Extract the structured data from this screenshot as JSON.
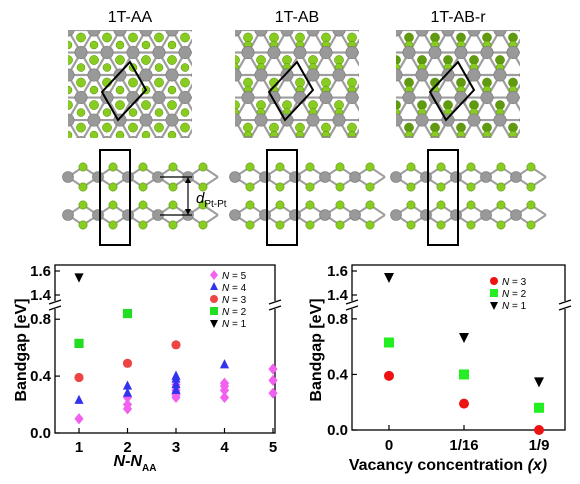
{
  "structures": {
    "titles": [
      "1T-AA",
      "1T-AB",
      "1T-AB-r"
    ],
    "distance_label": {
      "main": "d",
      "sub": "Pt-Pt"
    }
  },
  "chart_data": [
    {
      "type": "scatter",
      "xlabel": {
        "main": "N-N",
        "sub": "AA"
      },
      "ylabel": "Bandgap [eV]",
      "x_ticks": [
        "1",
        "2",
        "3",
        "4",
        "5"
      ],
      "y_ticks": [
        "0.0",
        "0.4",
        "0.8",
        "1.4",
        "1.6"
      ],
      "ylim": [
        0,
        1.65
      ],
      "axis_break": [
        0.9,
        1.35
      ],
      "legend_position": "top-right",
      "series": [
        {
          "name": "N = 5",
          "marker": "diamond",
          "color": "#f260f0",
          "points": [
            [
              1,
              0.1
            ],
            [
              2,
              0.17
            ],
            [
              2,
              0.2
            ],
            [
              2,
              0.25
            ],
            [
              3,
              0.25
            ],
            [
              3,
              0.27
            ],
            [
              3,
              0.3
            ],
            [
              3,
              0.34
            ],
            [
              4,
              0.25
            ],
            [
              4,
              0.3
            ],
            [
              4,
              0.33
            ],
            [
              4,
              0.35
            ],
            [
              5,
              0.28
            ],
            [
              5,
              0.37
            ],
            [
              5,
              0.45
            ]
          ]
        },
        {
          "name": "N = 4",
          "marker": "triangle-up",
          "color": "#3333ee",
          "points": [
            [
              1,
              0.23
            ],
            [
              2,
              0.28
            ],
            [
              2,
              0.33
            ],
            [
              3,
              0.3
            ],
            [
              3,
              0.34
            ],
            [
              3,
              0.38
            ],
            [
              3,
              0.4
            ],
            [
              4,
              0.48
            ]
          ]
        },
        {
          "name": "N = 3",
          "marker": "circle",
          "color": "#ee4444",
          "points": [
            [
              1,
              0.39
            ],
            [
              2,
              0.49
            ],
            [
              3,
              0.62
            ]
          ]
        },
        {
          "name": "N = 2",
          "marker": "square",
          "color": "#22dd22",
          "points": [
            [
              1,
              0.63
            ],
            [
              2,
              0.84
            ]
          ]
        },
        {
          "name": "N = 1",
          "marker": "triangle-down",
          "color": "#000000",
          "points": [
            [
              1,
              1.55
            ]
          ]
        }
      ]
    },
    {
      "type": "scatter",
      "xlabel": {
        "main": "Vacancy concentration ",
        "var": "(x)"
      },
      "ylabel": "Bandgap [eV]",
      "categories": [
        "0",
        "1/16",
        "1/9"
      ],
      "y_ticks": [
        "0.0",
        "0.4",
        "0.8",
        "1.4",
        "1.6"
      ],
      "ylim": [
        0,
        1.65
      ],
      "axis_break": [
        0.9,
        1.35
      ],
      "legend_position": "top-right",
      "series": [
        {
          "name": "N = 3",
          "marker": "circle",
          "color": "#ee1111",
          "values": [
            0.39,
            0.19,
            0.0
          ]
        },
        {
          "name": "N = 2",
          "marker": "square",
          "color": "#22ee22",
          "values": [
            0.63,
            0.4,
            0.16
          ]
        },
        {
          "name": "N = 1",
          "marker": "triangle-down",
          "color": "#000000",
          "values": [
            1.55,
            0.67,
            0.35
          ]
        }
      ]
    }
  ]
}
